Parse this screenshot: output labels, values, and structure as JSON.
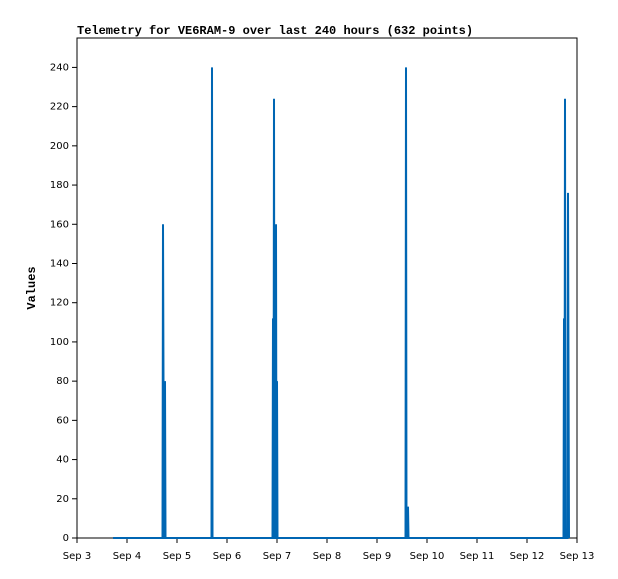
{
  "chart_data": {
    "type": "line",
    "title": "Telemetry for VE6RAM-9 over last 240 hours (632 points)",
    "y_label": "Values",
    "xlim": [
      3,
      13
    ],
    "xticks": [
      {
        "value": 3,
        "label": "Sep 3"
      },
      {
        "value": 4,
        "label": "Sep 4"
      },
      {
        "value": 5,
        "label": "Sep 5"
      },
      {
        "value": 6,
        "label": "Sep 6"
      },
      {
        "value": 7,
        "label": "Sep 7"
      },
      {
        "value": 8,
        "label": "Sep 8"
      },
      {
        "value": 9,
        "label": "Sep 9"
      },
      {
        "value": 10,
        "label": "Sep 10"
      },
      {
        "value": 11,
        "label": "Sep 11"
      },
      {
        "value": 12,
        "label": "Sep 12"
      },
      {
        "value": 13,
        "label": "Sep 13"
      }
    ],
    "ylim": [
      0,
      255
    ],
    "yticks": [
      0,
      20,
      40,
      60,
      80,
      100,
      120,
      140,
      160,
      180,
      200,
      220,
      240
    ],
    "x": [
      3.72,
      4.71,
      4.72,
      4.74,
      4.75,
      4.76,
      4.77,
      5.69,
      5.7,
      5.71,
      6.91,
      6.92,
      6.93,
      6.94,
      6.95,
      6.97,
      6.98,
      6.99,
      7.0,
      7.01,
      9.57,
      9.58,
      9.59,
      9.61,
      9.62,
      9.63,
      12.73,
      12.74,
      12.75,
      12.76,
      12.77,
      12.81,
      12.82,
      12.84
    ],
    "series": [
      {
        "color": "#0066b3",
        "values": [
          0,
          0,
          160,
          0,
          0,
          80,
          0,
          0,
          240,
          0,
          0,
          112,
          0,
          224,
          0,
          0,
          160,
          0,
          80,
          0,
          0,
          240,
          0,
          0,
          16,
          0,
          0,
          112,
          0,
          224,
          0,
          0,
          176,
          0
        ]
      }
    ]
  }
}
